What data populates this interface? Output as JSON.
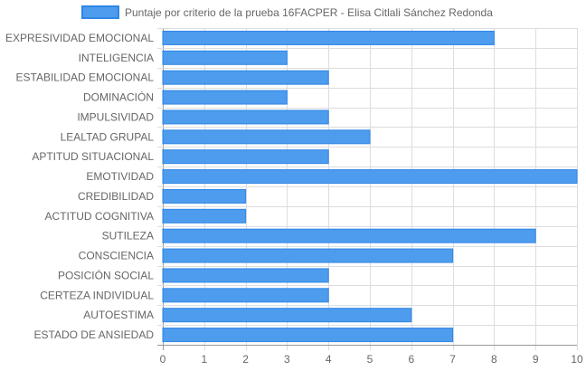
{
  "chart_data": {
    "type": "bar",
    "orientation": "horizontal",
    "legend_position": "top",
    "grid": true,
    "xlim": [
      0,
      10
    ],
    "x_ticks": [
      0,
      1,
      2,
      3,
      4,
      5,
      6,
      7,
      8,
      9,
      10
    ],
    "categories": [
      "EXPRESIVIDAD EMOCIONAL",
      "INTELIGENCIA",
      "ESTABILIDAD EMOCIONAL",
      "DOMINACIÓN",
      "IMPULSIVIDAD",
      "LEALTAD GRUPAL",
      "APTITUD SITUACIONAL",
      "EMOTIVIDAD",
      "CREDIBILIDAD",
      "ACTITUD COGNITIVA",
      "SUTILEZA",
      "CONSCIENCIA",
      "POSICIÓN SOCIAL",
      "CERTEZA INDIVIDUAL",
      "AUTOESTIMA",
      "ESTADO DE ANSIEDAD"
    ],
    "series": [
      {
        "name": "Puntaje por criterio de la prueba 16FACPER - Elisa Citlali Sánchez Redonda",
        "values": [
          8,
          3,
          4,
          3,
          4,
          5,
          4,
          10,
          2,
          2,
          9,
          7,
          4,
          4,
          6,
          7
        ],
        "color": "#4d9ced",
        "border_color": "#2f86e6"
      }
    ],
    "grid_color": "#dddddd"
  }
}
